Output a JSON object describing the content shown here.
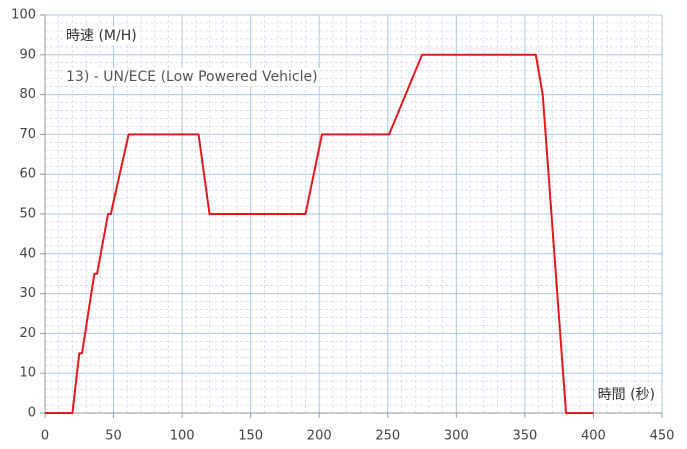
{
  "chart_data": {
    "type": "line",
    "title": "13) - UN/ECE (Low Powered Vehicle)",
    "y_label": "時速 (M/H)",
    "x_label": "時間 (秒)",
    "x": [
      0,
      20,
      25,
      27,
      36,
      38,
      46,
      48,
      61,
      112,
      120,
      190,
      202,
      251,
      275,
      358,
      363,
      380,
      400
    ],
    "series": [
      {
        "color": "#e31a1c",
        "values": [
          0,
          0,
          15,
          15,
          35,
          35,
          50,
          50,
          70,
          70,
          50,
          50,
          70,
          70,
          90,
          90,
          80,
          0,
          0
        ]
      }
    ],
    "xlim": [
      0,
      450
    ],
    "xticks": [
      0,
      50,
      100,
      150,
      200,
      250,
      300,
      350,
      400,
      450
    ],
    "ylim": [
      0,
      100
    ],
    "yticks": [
      0,
      10,
      20,
      30,
      40,
      50,
      60,
      70,
      80,
      90,
      100
    ],
    "grid": true,
    "minor_grid": true
  }
}
